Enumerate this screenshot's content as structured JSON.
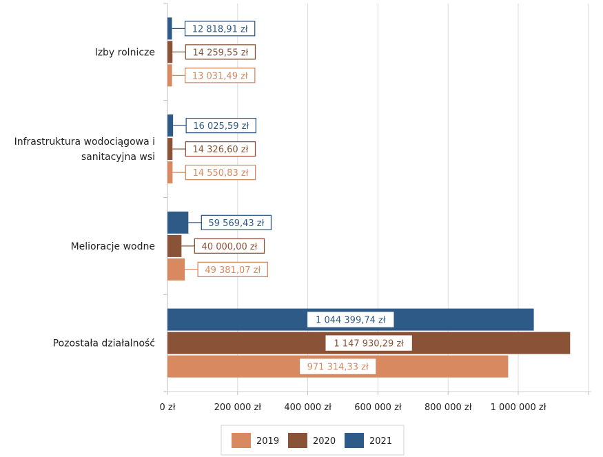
{
  "chart_data": {
    "type": "bar",
    "orientation": "horizontal",
    "categories": [
      [
        "Izby rolnicze"
      ],
      [
        "Infrastruktura wodociągowa i",
        "sanitacyjna wsi"
      ],
      [
        "Melioracje wodne"
      ],
      [
        "Pozostała działalność"
      ]
    ],
    "series": [
      {
        "name": "2021",
        "color": "#2e5a87",
        "values": [
          12818.91,
          16025.59,
          59569.43,
          1044399.74
        ],
        "labels": [
          "12 818,91 zł",
          "16 025,59 zł",
          "59 569,43 zł",
          "1 044 399,74 zł"
        ]
      },
      {
        "name": "2020",
        "color": "#8a5236",
        "values": [
          14259.55,
          14326.6,
          40000.0,
          1147930.29
        ],
        "labels": [
          "14 259,55 zł",
          "14 326,60 zł",
          "40 000,00 zł",
          "1 147 930,29 zł"
        ]
      },
      {
        "name": "2019",
        "color": "#d9895f",
        "values": [
          13031.49,
          14550.83,
          49381.07,
          971314.33
        ],
        "labels": [
          "13 031,49 zł",
          "14 550,83 zł",
          "49 381,07 zł",
          "971 314,33 zł"
        ]
      }
    ],
    "xlim": [
      0,
      1200000
    ],
    "xticks": [
      {
        "value": 0,
        "label": "0 zł"
      },
      {
        "value": 200000,
        "label": "200 000 zł"
      },
      {
        "value": 400000,
        "label": "400 000 zł"
      },
      {
        "value": 600000,
        "label": "600 000 zł"
      },
      {
        "value": 800000,
        "label": "800 000 zł"
      },
      {
        "value": 1000000,
        "label": "1 000 000 zł"
      }
    ],
    "legend": {
      "position": "bottom",
      "items": [
        {
          "name": "2019",
          "color": "#d9895f"
        },
        {
          "name": "2020",
          "color": "#8a5236"
        },
        {
          "name": "2021",
          "color": "#2e5a87"
        }
      ]
    },
    "grid": true
  }
}
